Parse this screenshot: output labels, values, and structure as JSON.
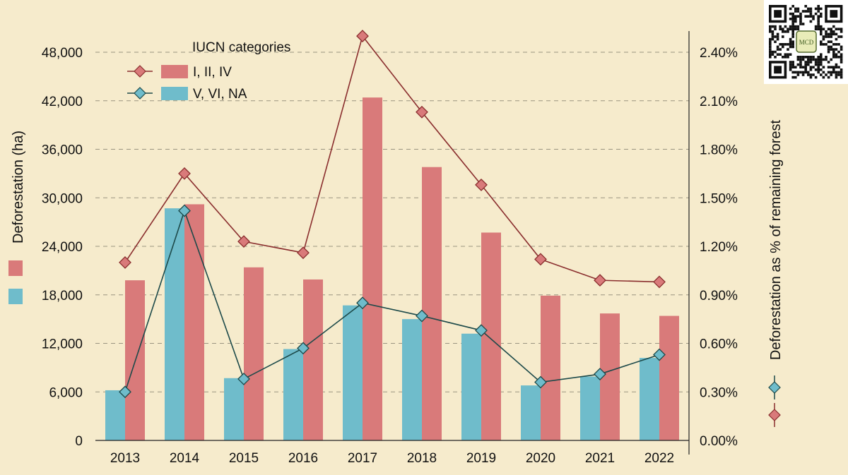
{
  "chart_data": {
    "type": "bar",
    "categories": [
      "2013",
      "2014",
      "2015",
      "2016",
      "2017",
      "2018",
      "2019",
      "2020",
      "2021",
      "2022"
    ],
    "series": [
      {
        "name": "I, II, IV",
        "kind": "bar",
        "axis": "left",
        "color": "#d97a7a",
        "values": [
          19800,
          29200,
          21400,
          19900,
          42400,
          33800,
          25700,
          17900,
          15700,
          15400
        ]
      },
      {
        "name": "V, VI, NA",
        "kind": "bar",
        "axis": "left",
        "color": "#6fbccb",
        "values": [
          6200,
          28700,
          7700,
          11300,
          16700,
          15000,
          13200,
          6800,
          7900,
          10200
        ]
      },
      {
        "name": "I, II, IV",
        "kind": "line",
        "axis": "right",
        "color": "#8a2e2e",
        "marker_color": "#d97a7a",
        "values": [
          1.1,
          1.65,
          1.23,
          1.16,
          2.5,
          2.03,
          1.58,
          1.12,
          0.99,
          0.98
        ]
      },
      {
        "name": "V, VI, NA",
        "kind": "line",
        "axis": "right",
        "color": "#1d4a4a",
        "marker_color": "#6fbccb",
        "values": [
          0.3,
          1.42,
          0.38,
          0.57,
          0.85,
          0.77,
          0.68,
          0.36,
          0.41,
          0.53
        ]
      }
    ],
    "y_left": {
      "label": "Deforestation (ha)",
      "range": [
        0,
        48000
      ],
      "ticks": [
        0,
        6000,
        12000,
        18000,
        24000,
        30000,
        36000,
        42000,
        48000
      ],
      "tick_labels": [
        "0",
        "6,000",
        "12,000",
        "18,000",
        "24,000",
        "30,000",
        "36,000",
        "42,000",
        "48,000"
      ]
    },
    "y_right": {
      "label": "Deforestation as % of remaining forest",
      "range": [
        0,
        2.4
      ],
      "ticks": [
        0,
        0.3,
        0.6,
        0.9,
        1.2,
        1.5,
        1.8,
        2.1,
        2.4
      ],
      "tick_labels": [
        "0.00%",
        "0.30%",
        "0.60%",
        "0.90%",
        "1.20%",
        "1.50%",
        "1.80%",
        "2.10%",
        "2.40%"
      ]
    },
    "legend": {
      "title": "IUCN categories",
      "position": "top-left",
      "entries": [
        "I, II, IV",
        "V, VI, NA"
      ]
    },
    "grid": true
  },
  "logo": {
    "text": "MCD"
  }
}
